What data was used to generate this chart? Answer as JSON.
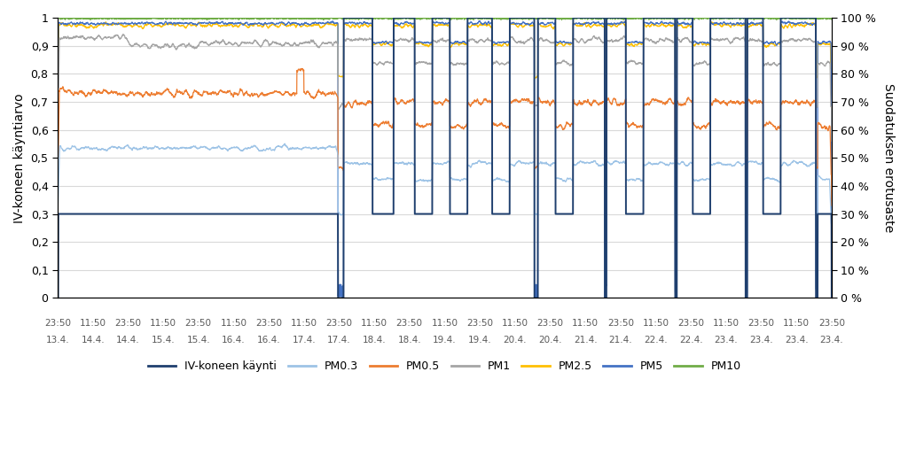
{
  "ylabel_left": "IV-koneen käyntiarvo",
  "ylabel_right": "Suodatuksen erotusaste",
  "yticks_left": [
    0,
    0.1,
    0.2,
    0.3,
    0.4,
    0.5,
    0.6,
    0.7,
    0.8,
    0.9,
    1.0
  ],
  "ytick_labels_left": [
    "0",
    "0,1",
    "0,2",
    "0,3",
    "0,4",
    "0,5",
    "0,6",
    "0,7",
    "0,8",
    "0,9",
    "1"
  ],
  "ytick_labels_right": [
    "0 %",
    "10 %",
    "20 %",
    "30 %",
    "40 %",
    "50 %",
    "60 %",
    "70 %",
    "80 %",
    "90 %",
    "100 %"
  ],
  "series_colors": {
    "IV-koneen käynti": "#1F3F6E",
    "PM0.3": "#9DC3E6",
    "PM0.5": "#ED7D31",
    "PM1": "#A5A5A5",
    "PM2.5": "#FFC000",
    "PM5": "#4472C4",
    "PM10": "#70AD47"
  },
  "background_color": "#FFFFFF",
  "grid_color": "#D9D9D9",
  "times_list": [
    "23:50",
    "11:50",
    "23:50",
    "11:50",
    "23:50",
    "11:50",
    "23:50",
    "11:50",
    "23:50",
    "11:50",
    "23:50",
    "11:50",
    "23:50",
    "11:50",
    "23:50",
    "11:50",
    "23:50",
    "11:50",
    "23:50",
    "11:50",
    "23:50",
    "11:50",
    "23:50"
  ],
  "days_list": [
    "13.4.",
    "14.4.",
    "14.4.",
    "15.4.",
    "15.4.",
    "16.4.",
    "16.4.",
    "17.4.",
    "17.4.",
    "18.4.",
    "18.4.",
    "19.4.",
    "19.4.",
    "20.4.",
    "20.4.",
    "21.4.",
    "21.4.",
    "22.4.",
    "22.4.",
    "23.4.",
    "23.4.",
    "23.4.",
    "23.4."
  ]
}
